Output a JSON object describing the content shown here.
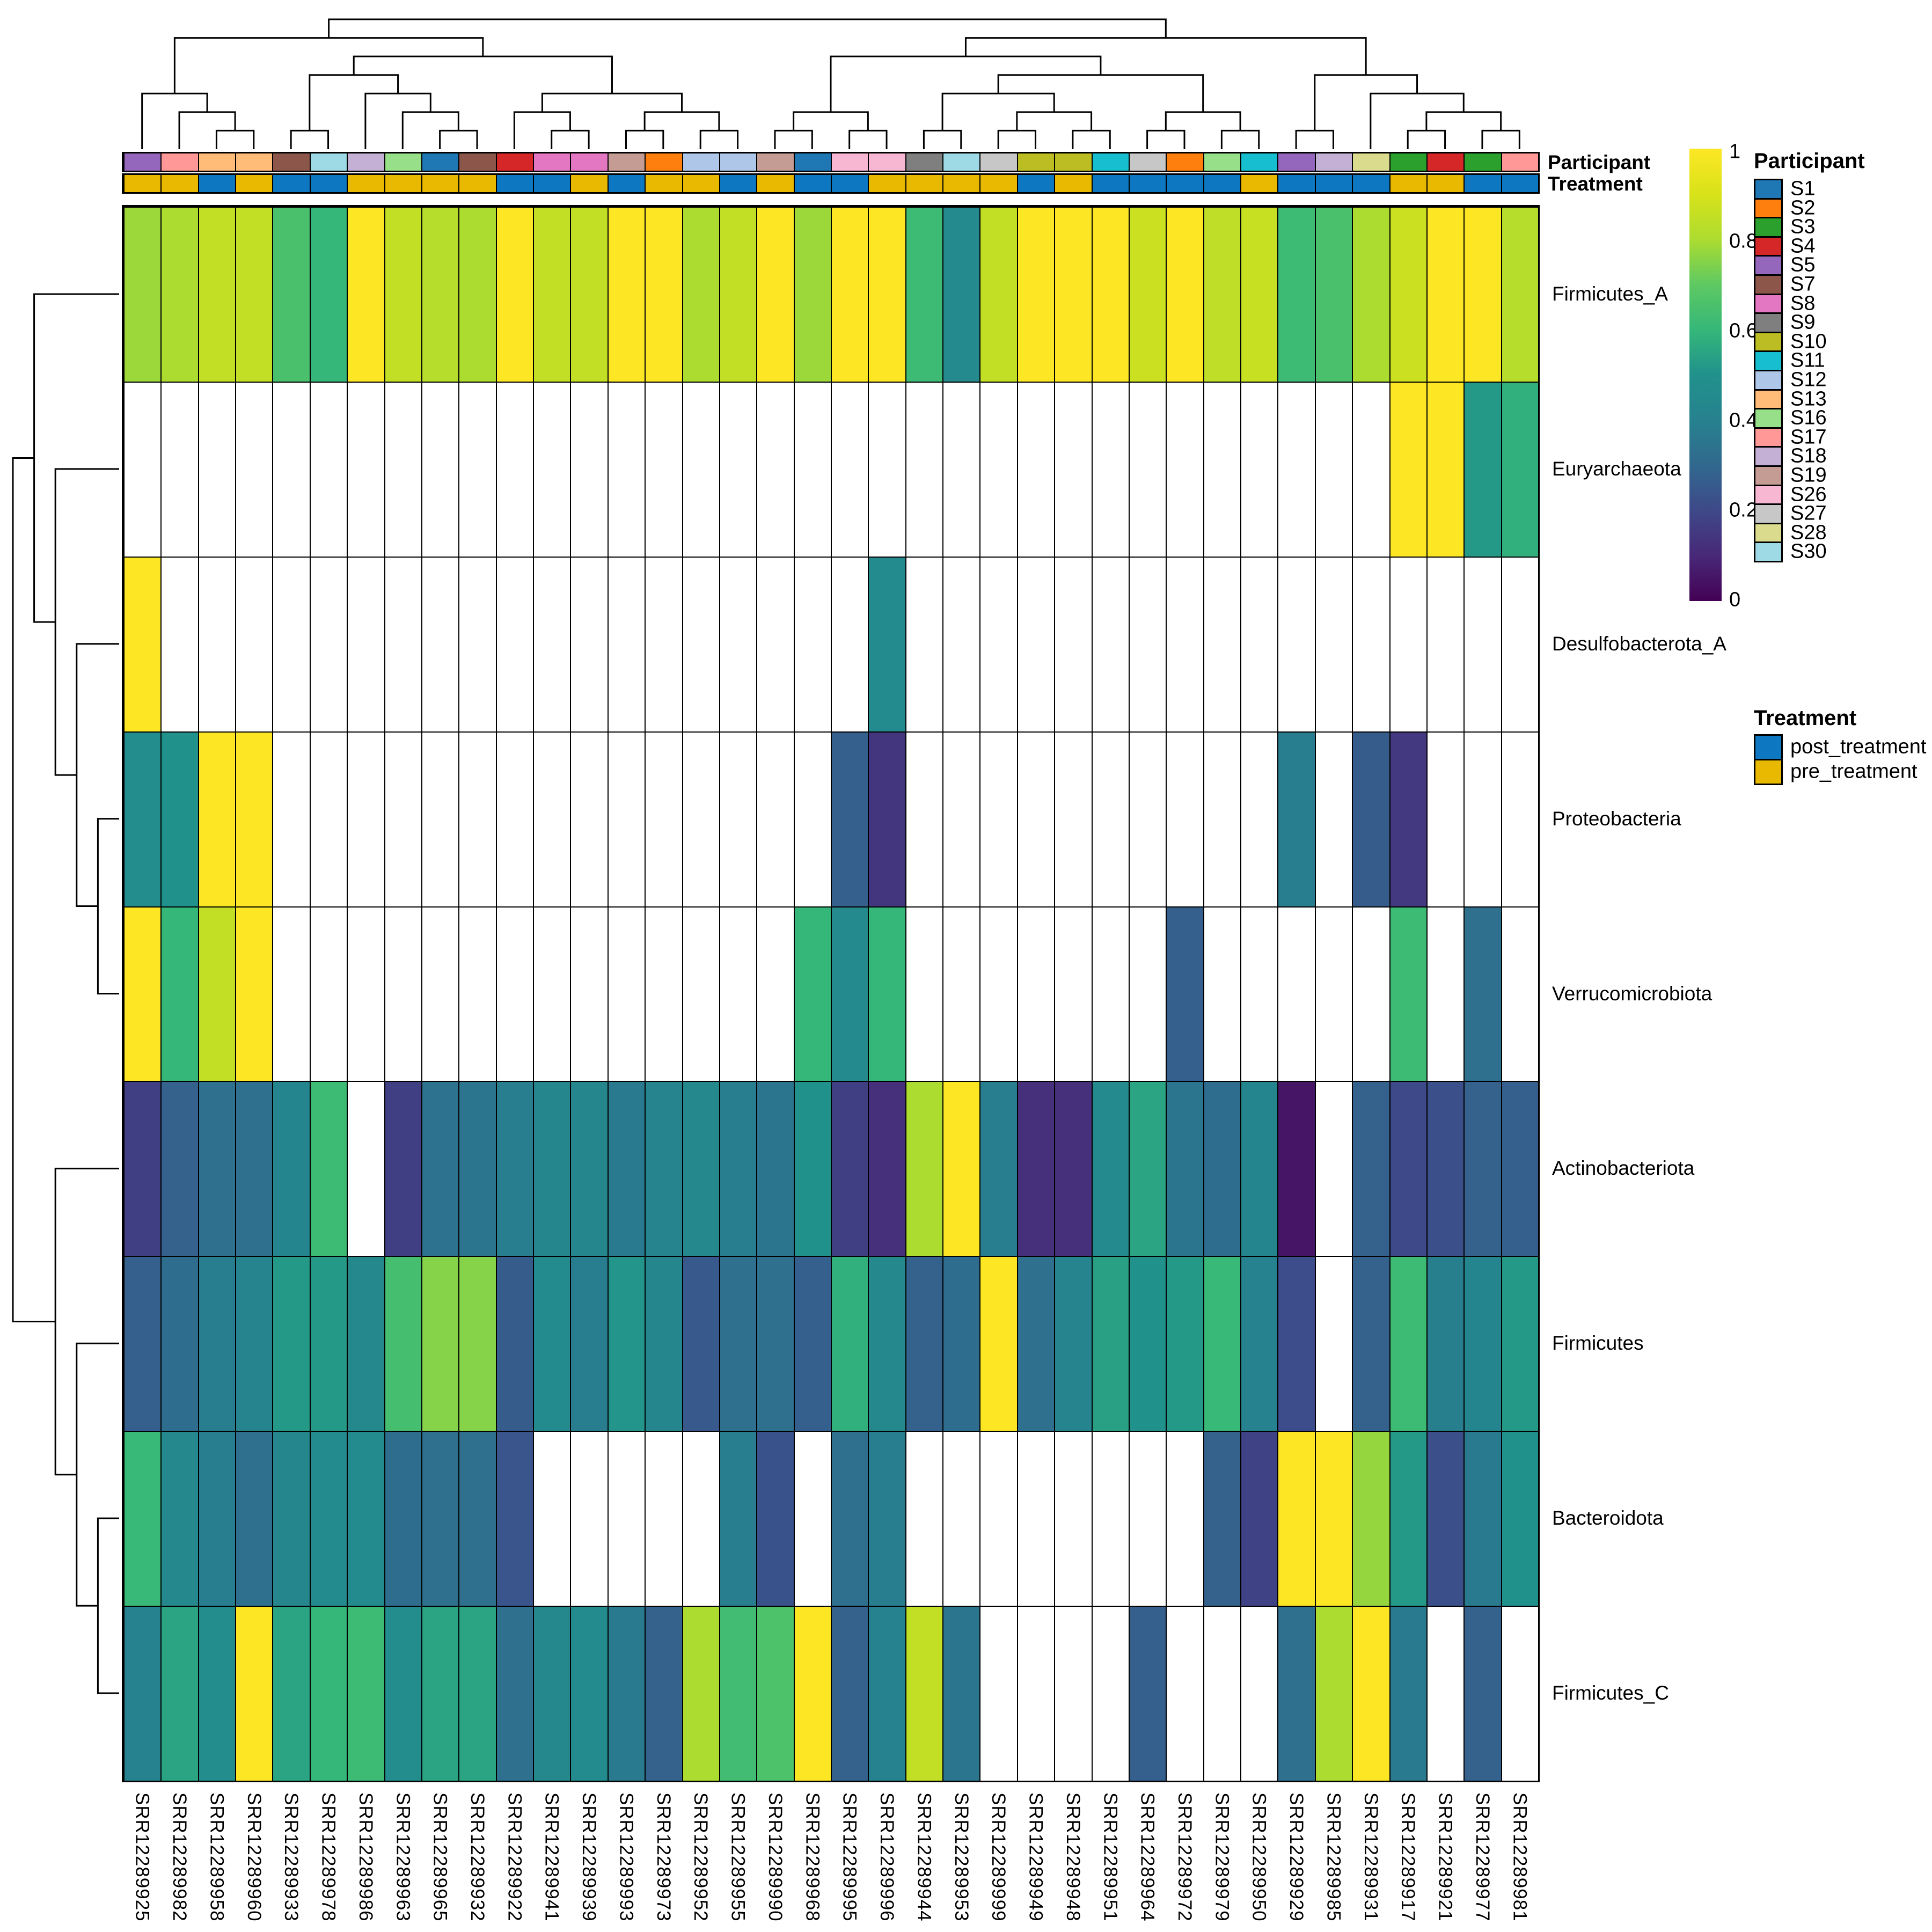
{
  "ui": {
    "participant_row_label": "Participant",
    "treatment_row_label": "Treatment",
    "participant_legend_title": "Participant",
    "treatment_legend_title": "Treatment"
  },
  "chart_data": {
    "type": "heatmap",
    "colormap": "viridis",
    "value_range": [
      0,
      1
    ],
    "colorbar_ticks": [
      "1",
      "0.8",
      "0.6",
      "0.4",
      "0.2",
      "0"
    ],
    "rows": [
      "Firmicutes_A",
      "Euryarchaeota",
      "Desulfobacterota_A",
      "Proteobacteria",
      "Verrucomicrobiota",
      "Actinobacteriota",
      "Firmicutes",
      "Bacteroidota",
      "Firmicutes_C"
    ],
    "columns": [
      "SRR12289925",
      "SRR12289982",
      "SRR12289958",
      "SRR12289960",
      "SRR12289933",
      "SRR12289978",
      "SRR12289986",
      "SRR12289963",
      "SRR12289965",
      "SRR12289932",
      "SRR12289922",
      "SRR12289941",
      "SRR12289939",
      "SRR12289993",
      "SRR12289973",
      "SRR12289952",
      "SRR12289955",
      "SRR12289990",
      "SRR12289968",
      "SRR12289995",
      "SRR12289996",
      "SRR12289944",
      "SRR12289953",
      "SRR12289999",
      "SRR12289949",
      "SRR12289948",
      "SRR12289951",
      "SRR12289964",
      "SRR12289972",
      "SRR12289979",
      "SRR12289950",
      "SRR12289929",
      "SRR12289985",
      "SRR12289931",
      "SRR12289917",
      "SRR12289921",
      "SRR12289977",
      "SRR12289981"
    ],
    "column_participant": [
      "S5",
      "S17",
      "S13",
      "S13",
      "S7",
      "S30",
      "S18",
      "S16",
      "S1",
      "S7",
      "S4",
      "S8",
      "S8",
      "S19",
      "S2",
      "S12",
      "S12",
      "S19",
      "S1",
      "S26",
      "S26",
      "S9",
      "S30",
      "S27",
      "S10",
      "S10",
      "S11",
      "S27",
      "S2",
      "S16",
      "S11",
      "S5",
      "S18",
      "S28",
      "S3",
      "S4",
      "S3",
      "S17"
    ],
    "column_treatment": [
      "pre_treatment",
      "pre_treatment",
      "post_treatment",
      "pre_treatment",
      "post_treatment",
      "post_treatment",
      "pre_treatment",
      "pre_treatment",
      "pre_treatment",
      "pre_treatment",
      "post_treatment",
      "post_treatment",
      "pre_treatment",
      "post_treatment",
      "pre_treatment",
      "pre_treatment",
      "post_treatment",
      "pre_treatment",
      "post_treatment",
      "post_treatment",
      "pre_treatment",
      "pre_treatment",
      "pre_treatment",
      "pre_treatment",
      "post_treatment",
      "pre_treatment",
      "post_treatment",
      "post_treatment",
      "post_treatment",
      "post_treatment",
      "pre_treatment",
      "post_treatment",
      "post_treatment",
      "post_treatment",
      "pre_treatment",
      "pre_treatment",
      "post_treatment",
      "post_treatment"
    ],
    "values": [
      [
        0.78,
        0.8,
        0.85,
        0.85,
        0.65,
        0.6,
        1,
        0.85,
        0.82,
        0.8,
        1,
        0.85,
        0.85,
        1,
        1,
        0.8,
        0.85,
        1,
        0.78,
        1,
        1,
        0.62,
        0.45,
        0.85,
        1,
        1,
        1,
        0.87,
        1,
        0.84,
        0.86,
        0.62,
        0.65,
        0.8,
        0.87,
        1,
        1,
        0.82
      ],
      [
        null,
        null,
        null,
        null,
        null,
        null,
        null,
        null,
        null,
        null,
        null,
        null,
        null,
        null,
        null,
        null,
        null,
        null,
        null,
        null,
        null,
        null,
        null,
        null,
        null,
        null,
        null,
        null,
        null,
        null,
        null,
        null,
        null,
        null,
        1,
        1,
        0.52,
        0.58
      ],
      [
        1,
        null,
        null,
        null,
        null,
        null,
        null,
        null,
        null,
        null,
        null,
        null,
        null,
        null,
        null,
        null,
        null,
        null,
        null,
        null,
        0.46,
        null,
        null,
        null,
        null,
        null,
        null,
        null,
        null,
        null,
        null,
        null,
        null,
        null,
        null,
        null,
        null,
        null
      ],
      [
        0.47,
        0.5,
        1,
        1,
        null,
        null,
        null,
        null,
        null,
        null,
        null,
        null,
        null,
        null,
        null,
        null,
        null,
        null,
        null,
        0.27,
        0.14,
        null,
        null,
        null,
        null,
        null,
        null,
        null,
        null,
        null,
        null,
        0.38,
        null,
        0.26,
        0.15,
        null,
        null,
        null
      ],
      [
        1,
        0.6,
        0.85,
        1,
        null,
        null,
        null,
        null,
        null,
        null,
        null,
        null,
        null,
        null,
        null,
        null,
        null,
        null,
        0.6,
        0.45,
        0.6,
        null,
        null,
        null,
        null,
        null,
        null,
        null,
        0.27,
        null,
        null,
        null,
        null,
        null,
        0.62,
        null,
        0.33,
        null
      ],
      [
        0.17,
        0.28,
        0.33,
        0.33,
        0.42,
        0.62,
        null,
        0.17,
        0.34,
        0.35,
        0.38,
        0.43,
        0.43,
        0.37,
        0.41,
        0.44,
        0.38,
        0.35,
        0.5,
        0.17,
        0.12,
        0.8,
        1,
        0.38,
        0.12,
        0.12,
        0.45,
        0.55,
        0.35,
        0.32,
        0.42,
        0.05,
        null,
        0.28,
        0.2,
        0.22,
        0.28,
        0.27
      ],
      [
        0.27,
        0.32,
        0.38,
        0.41,
        0.52,
        0.52,
        0.44,
        0.64,
        0.75,
        0.75,
        0.26,
        0.46,
        0.38,
        0.51,
        0.43,
        0.25,
        0.33,
        0.33,
        0.27,
        0.58,
        0.44,
        0.28,
        0.32,
        1,
        0.33,
        0.41,
        0.54,
        0.5,
        0.52,
        0.61,
        0.4,
        0.21,
        null,
        0.28,
        0.62,
        0.39,
        0.42,
        0.52
      ],
      [
        0.61,
        0.44,
        0.38,
        0.33,
        0.43,
        0.46,
        0.46,
        0.32,
        0.33,
        0.33,
        0.24,
        null,
        null,
        null,
        null,
        null,
        0.38,
        0.23,
        null,
        0.33,
        0.38,
        null,
        null,
        null,
        null,
        null,
        null,
        null,
        null,
        0.28,
        0.18,
        1,
        1,
        0.77,
        0.52,
        0.22,
        0.37,
        0.5
      ],
      [
        0.4,
        0.55,
        0.47,
        1,
        0.55,
        0.6,
        0.62,
        0.47,
        0.55,
        0.55,
        0.33,
        0.44,
        0.46,
        0.37,
        0.28,
        0.8,
        0.63,
        0.66,
        1,
        0.28,
        0.4,
        0.85,
        0.35,
        null,
        null,
        null,
        null,
        0.27,
        null,
        null,
        null,
        0.33,
        0.8,
        1,
        0.37,
        null,
        0.28,
        null
      ]
    ],
    "participant_legend": [
      {
        "label": "S1",
        "color": "#1f77b4"
      },
      {
        "label": "S2",
        "color": "#ff7f0e"
      },
      {
        "label": "S3",
        "color": "#2ca02c"
      },
      {
        "label": "S4",
        "color": "#d62728"
      },
      {
        "label": "S5",
        "color": "#9467bd"
      },
      {
        "label": "S7",
        "color": "#8c564b"
      },
      {
        "label": "S8",
        "color": "#e377c2"
      },
      {
        "label": "S9",
        "color": "#7f7f7f"
      },
      {
        "label": "S10",
        "color": "#bcbd22"
      },
      {
        "label": "S11",
        "color": "#17becf"
      },
      {
        "label": "S12",
        "color": "#aec7e8"
      },
      {
        "label": "S13",
        "color": "#ffbb78"
      },
      {
        "label": "S16",
        "color": "#98df8a"
      },
      {
        "label": "S17",
        "color": "#ff9896"
      },
      {
        "label": "S18",
        "color": "#c5b0d5"
      },
      {
        "label": "S19",
        "color": "#c49c94"
      },
      {
        "label": "S26",
        "color": "#f7b6d2"
      },
      {
        "label": "S27",
        "color": "#c7c7c7"
      },
      {
        "label": "S28",
        "color": "#dbdb8d"
      },
      {
        "label": "S30",
        "color": "#9edae5"
      }
    ],
    "treatment_legend": [
      {
        "label": "post_treatment",
        "color": "#0d77c2"
      },
      {
        "label": "pre_treatment",
        "color": "#e9b801"
      }
    ],
    "na_color": "#ffffff",
    "column_dendrogram": [
      [
        [
          0,
          [
            1,
            [
              2,
              3
            ]
          ]
        ],
        [
          [
            [
              4,
              5
            ],
            [
              6,
              [
                7,
                [
                  8,
                  9
                ]
              ]
            ]
          ],
          [
            [
              10,
              [
                11,
                12
              ]
            ],
            [
              [
                13,
                14
              ],
              [
                15,
                16
              ]
            ]
          ]
        ]
      ],
      [
        [
          [
            [
              17,
              18
            ],
            [
              19,
              20
            ]
          ],
          [
            [
              [
                21,
                22
              ],
              [
                [
                  23,
                  24
                ],
                [
                  25,
                  26
                ]
              ]
            ],
            [
              [
                27,
                28
              ],
              [
                29,
                30
              ]
            ]
          ]
        ],
        [
          [
            31,
            32
          ],
          [
            33,
            [
              [
                34,
                35
              ],
              [
                36,
                37
              ]
            ]
          ]
        ]
      ]
    ],
    "row_dendrogram": [
      [
        0,
        [
          1,
          [
            2,
            [
              3,
              4
            ]
          ]
        ]
      ],
      [
        5,
        [
          6,
          [
            7,
            8
          ]
        ]
      ]
    ]
  }
}
